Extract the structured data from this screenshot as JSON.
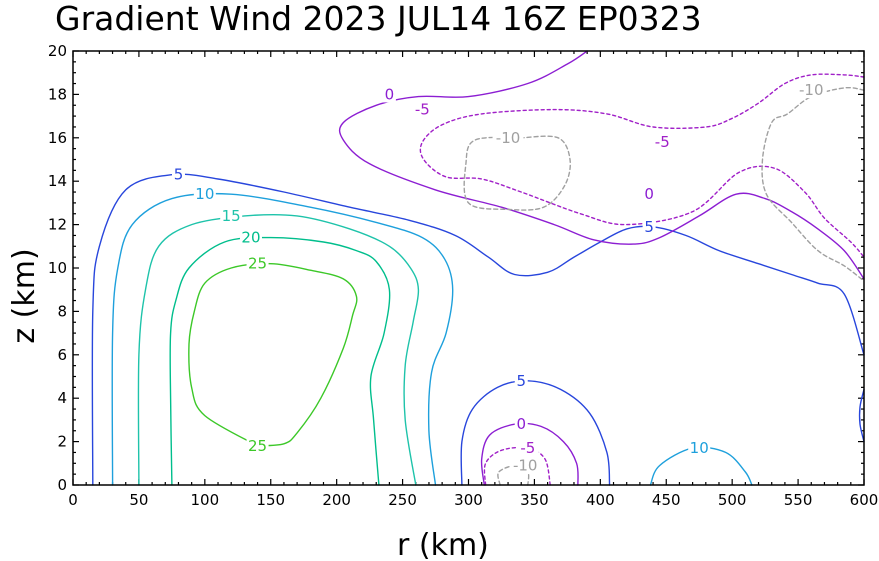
{
  "chart_data": {
    "type": "contour",
    "title": "Gradient Wind 2023 JUL14 16Z  EP0323",
    "xlabel": "r (km)",
    "ylabel": "z (km)",
    "xlim": [
      0,
      600
    ],
    "ylim": [
      0,
      20
    ],
    "xticks": [
      0,
      50,
      100,
      150,
      200,
      250,
      300,
      350,
      400,
      450,
      500,
      550,
      600
    ],
    "yticks": [
      0,
      2,
      4,
      6,
      8,
      10,
      12,
      14,
      16,
      18,
      20
    ],
    "contour_levels": [
      -10,
      -5,
      0,
      5,
      10,
      15,
      20,
      25
    ],
    "level_colors": {
      "-10": "#a0a0a0",
      "-5": "#a020c8",
      "0": "#8c1ed2",
      "5": "#2846dc",
      "10": "#1ea0dc",
      "15": "#1ec3aa",
      "20": "#00be8c",
      "25": "#3cc828"
    },
    "contours": [
      {
        "level": 25,
        "label": "25",
        "dash": "solid",
        "points": [
          [
            140,
            1.8
          ],
          [
            100,
            3.2
          ],
          [
            90,
            4.5
          ],
          [
            88,
            6.5
          ],
          [
            92,
            8.0
          ],
          [
            100,
            9.3
          ],
          [
            120,
            10.0
          ],
          [
            150,
            10.2
          ],
          [
            180,
            9.9
          ],
          [
            205,
            9.5
          ],
          [
            215,
            8.7
          ],
          [
            212,
            7.8
          ],
          [
            205,
            6.3
          ],
          [
            188,
            4.0
          ],
          [
            170,
            2.4
          ],
          [
            160,
            1.9
          ],
          [
            140,
            1.8
          ]
        ]
      },
      {
        "level": 20,
        "label": "20",
        "dash": "solid",
        "points": [
          [
            75,
            0
          ],
          [
            74,
            4
          ],
          [
            74,
            7
          ],
          [
            78,
            8.5
          ],
          [
            88,
            10.0
          ],
          [
            115,
            11.2
          ],
          [
            150,
            11.4
          ],
          [
            190,
            11.2
          ],
          [
            215,
            10.8
          ],
          [
            230,
            10.3
          ],
          [
            240,
            9.0
          ],
          [
            236,
            7.0
          ],
          [
            226,
            5.0
          ],
          [
            228,
            3.0
          ],
          [
            232,
            0
          ]
        ]
      },
      {
        "level": 15,
        "label": "15",
        "dash": "solid",
        "points": [
          [
            50,
            0
          ],
          [
            50,
            6
          ],
          [
            55,
            9
          ],
          [
            65,
            11.0
          ],
          [
            90,
            12.0
          ],
          [
            130,
            12.4
          ],
          [
            170,
            12.4
          ],
          [
            210,
            11.8
          ],
          [
            240,
            11.0
          ],
          [
            256,
            10.0
          ],
          [
            262,
            9.0
          ],
          [
            258,
            7.5
          ],
          [
            252,
            5.5
          ],
          [
            252,
            3.0
          ],
          [
            260,
            0
          ]
        ]
      },
      {
        "level": 10,
        "label": "10",
        "dash": "solid",
        "points": [
          [
            30,
            0
          ],
          [
            30,
            7
          ],
          [
            34,
            10.0
          ],
          [
            45,
            12.0
          ],
          [
            75,
            13.2
          ],
          [
            120,
            13.4
          ],
          [
            180,
            12.8
          ],
          [
            230,
            12.1
          ],
          [
            265,
            11.4
          ],
          [
            282,
            10.4
          ],
          [
            288,
            9.0
          ],
          [
            283,
            7.0
          ],
          [
            272,
            5.2
          ],
          [
            270,
            2.5
          ],
          [
            275,
            0
          ]
        ]
      },
      {
        "level": 5,
        "label": "5",
        "dash": "solid",
        "points": [
          [
            15,
            0
          ],
          [
            15,
            8
          ],
          [
            20,
            11.0
          ],
          [
            40,
            13.6
          ],
          [
            75,
            14.3
          ],
          [
            110,
            14.1
          ],
          [
            160,
            13.5
          ],
          [
            210,
            12.8
          ],
          [
            255,
            12.2
          ],
          [
            290,
            11.5
          ],
          [
            315,
            10.5
          ],
          [
            335,
            9.7
          ],
          [
            360,
            9.8
          ],
          [
            380,
            10.5
          ],
          [
            400,
            11.2
          ],
          [
            420,
            11.8
          ],
          [
            440,
            11.9
          ],
          [
            465,
            11.5
          ],
          [
            490,
            10.8
          ],
          [
            520,
            10.2
          ],
          [
            545,
            9.7
          ],
          [
            565,
            9.3
          ],
          [
            585,
            8.8
          ],
          [
            600,
            6.0
          ]
        ]
      },
      {
        "level": 5,
        "label": "5",
        "dash": "solid",
        "points": [
          [
            295,
            0
          ],
          [
            295,
            2.0
          ],
          [
            303,
            3.5
          ],
          [
            322,
            4.5
          ],
          [
            345,
            4.8
          ],
          [
            370,
            4.4
          ],
          [
            392,
            3.3
          ],
          [
            405,
            1.5
          ],
          [
            407,
            0
          ]
        ]
      },
      {
        "level": 5,
        "label": "",
        "dash": "solid",
        "points": [
          [
            600,
            4.4
          ],
          [
            597,
            3.6
          ],
          [
            597,
            2.8
          ],
          [
            600,
            2.0
          ]
        ]
      },
      {
        "level": 0,
        "label": "0",
        "dash": "solid",
        "points": [
          [
            390,
            20
          ],
          [
            375,
            19.4
          ],
          [
            345,
            18.5
          ],
          [
            300,
            17.9
          ],
          [
            262,
            17.9
          ],
          [
            230,
            17.5
          ],
          [
            205,
            16.7
          ],
          [
            205,
            15.9
          ],
          [
            225,
            14.8
          ],
          [
            275,
            13.6
          ],
          [
            325,
            12.8
          ],
          [
            365,
            12.0
          ],
          [
            395,
            11.3
          ],
          [
            425,
            11.1
          ],
          [
            445,
            11.4
          ],
          [
            475,
            12.4
          ],
          [
            503,
            13.4
          ],
          [
            525,
            13.2
          ],
          [
            545,
            12.6
          ],
          [
            565,
            11.8
          ],
          [
            585,
            10.8
          ],
          [
            600,
            9.5
          ]
        ]
      },
      {
        "level": 0,
        "label": "0",
        "dash": "solid",
        "points": [
          [
            312,
            0
          ],
          [
            310,
            1.2
          ],
          [
            316,
            2.3
          ],
          [
            335,
            2.8
          ],
          [
            355,
            2.7
          ],
          [
            372,
            2.0
          ],
          [
            382,
            1.0
          ],
          [
            383,
            0
          ]
        ]
      },
      {
        "level": -5,
        "label": "-5",
        "dash": "dashed",
        "points": [
          [
            600,
            18.8
          ],
          [
            585,
            18.9
          ],
          [
            560,
            18.9
          ],
          [
            540,
            18.5
          ],
          [
            520,
            17.6
          ],
          [
            500,
            16.9
          ],
          [
            480,
            16.5
          ],
          [
            440,
            16.5
          ],
          [
            405,
            17.1
          ],
          [
            365,
            17.3
          ],
          [
            310,
            17.1
          ],
          [
            280,
            16.6
          ],
          [
            265,
            15.8
          ],
          [
            266,
            15.0
          ],
          [
            283,
            14.2
          ],
          [
            310,
            14.1
          ],
          [
            340,
            13.5
          ],
          [
            385,
            12.5
          ],
          [
            420,
            12.0
          ],
          [
            470,
            12.6
          ],
          [
            505,
            14.4
          ],
          [
            532,
            14.6
          ],
          [
            555,
            13.5
          ],
          [
            570,
            12.3
          ],
          [
            590,
            11.2
          ],
          [
            600,
            10.5
          ]
        ]
      },
      {
        "level": -5,
        "label": "-5",
        "dash": "dashed",
        "points": [
          [
            313,
            0
          ],
          [
            313,
            1.0
          ],
          [
            325,
            1.6
          ],
          [
            345,
            1.7
          ],
          [
            358,
            1.2
          ],
          [
            362,
            0
          ]
        ]
      },
      {
        "level": -10,
        "label": "-10",
        "dash": "dashed",
        "points": [
          [
            600,
            18.2
          ],
          [
            585,
            18.3
          ],
          [
            560,
            17.9
          ],
          [
            542,
            17.1
          ],
          [
            530,
            16.7
          ],
          [
            523,
            15.0
          ],
          [
            526,
            13.4
          ],
          [
            545,
            12.1
          ],
          [
            565,
            10.8
          ],
          [
            585,
            10.1
          ],
          [
            600,
            9.4
          ]
        ]
      },
      {
        "level": -10,
        "label": "-10",
        "dash": "dashed",
        "points": [
          [
            340,
            16.0
          ],
          [
            305,
            15.9
          ],
          [
            298,
            14.8
          ],
          [
            300,
            13.0
          ],
          [
            330,
            12.7
          ],
          [
            357,
            12.8
          ],
          [
            373,
            13.8
          ],
          [
            377,
            15.0
          ],
          [
            368,
            16.0
          ],
          [
            340,
            16.0
          ]
        ]
      },
      {
        "level": -10,
        "label": "-10",
        "dash": "dashed",
        "points": [
          [
            324,
            0
          ],
          [
            323,
            0.6
          ],
          [
            336,
            0.9
          ],
          [
            345,
            0.6
          ],
          [
            345,
            0
          ]
        ]
      },
      {
        "level": 10,
        "label": "10",
        "dash": "solid",
        "points": [
          [
            438,
            0
          ],
          [
            445,
            0.9
          ],
          [
            470,
            1.7
          ],
          [
            495,
            1.5
          ],
          [
            510,
            0.6
          ],
          [
            515,
            0
          ]
        ]
      }
    ]
  }
}
